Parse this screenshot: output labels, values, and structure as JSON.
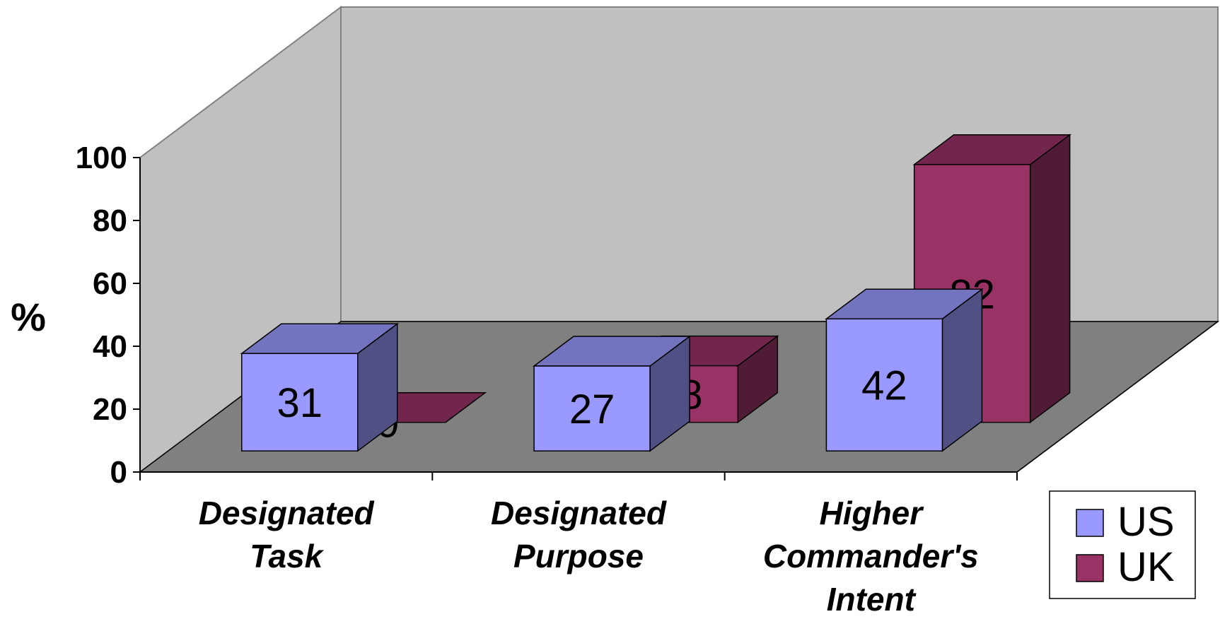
{
  "chart_data": {
    "type": "bar",
    "subtype": "3d-clustered-column",
    "title": "",
    "xlabel": "",
    "ylabel": "%",
    "ylim": [
      0,
      100
    ],
    "yticks": [
      "0",
      "20",
      "40",
      "60",
      "80",
      "100"
    ],
    "categories": [
      [
        "Designated",
        "Task"
      ],
      [
        "Designated",
        "Purpose"
      ],
      [
        "Higher",
        "Commander's",
        "Intent"
      ]
    ],
    "series": [
      {
        "name": "US",
        "values": [
          31,
          27,
          42
        ],
        "labels": [
          "31",
          "27",
          "42"
        ],
        "color": "#9999ff"
      },
      {
        "name": "UK",
        "values": [
          0,
          18,
          82
        ],
        "labels": [
          "0",
          "18",
          "82"
        ],
        "color": "#993366"
      }
    ],
    "legend": "right",
    "grid": false,
    "colors": {
      "back_wall": "#c0c0c0",
      "floor": "#808080"
    }
  }
}
